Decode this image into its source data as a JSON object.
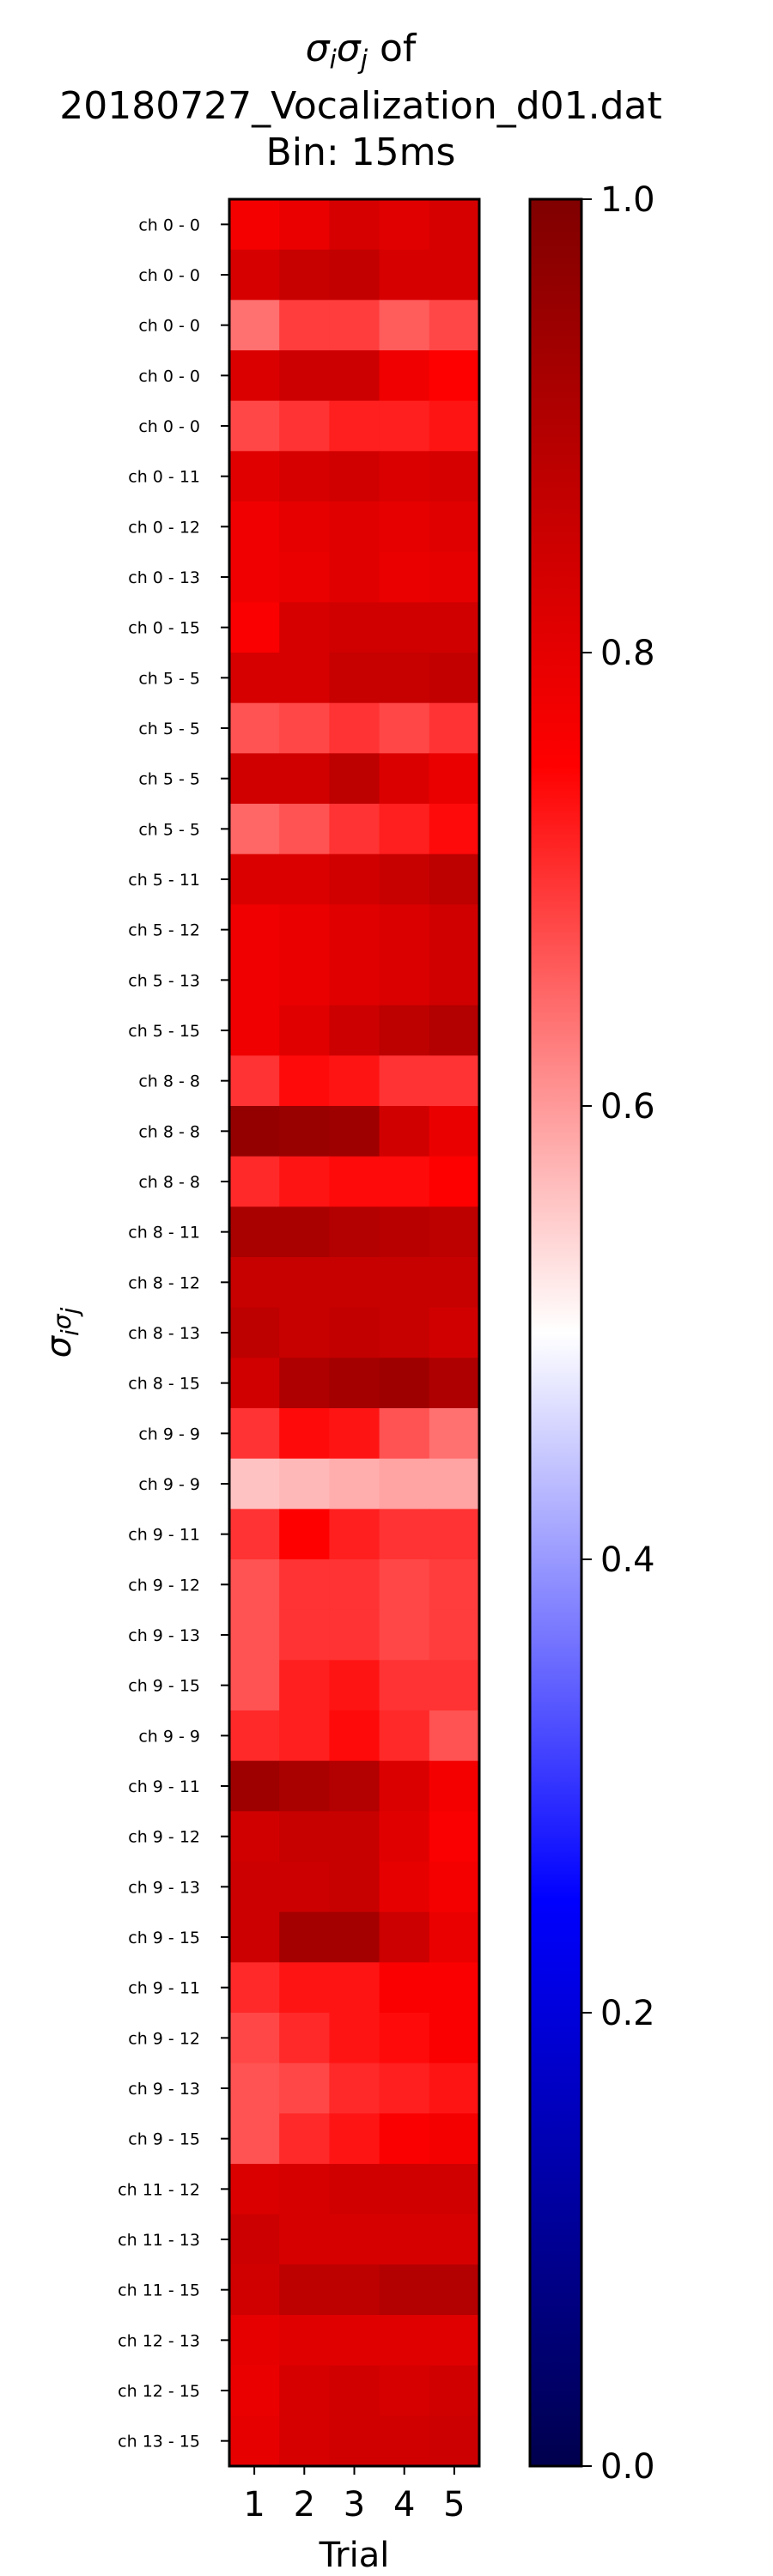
{
  "title": {
    "line1_symbol": "σ",
    "line1_sub_i": "i",
    "line1_symbol2": "σ",
    "line1_sub_j": "j",
    "line1_suffix": " of",
    "line2": "20180727_Vocalization_d01.dat",
    "line3": "Bin: 15ms"
  },
  "chart_data": {
    "type": "heatmap",
    "title": "σiσj of 20180727_Vocalization_d01.dat Bin: 15ms",
    "xlabel": "Trial",
    "ylabel": "σiσj",
    "x_ticks": [
      "1",
      "2",
      "3",
      "4",
      "5"
    ],
    "y_labels": [
      "ch  0 -  0",
      "ch  0 -  0",
      "ch  0 -  0",
      "ch  0 -  0",
      "ch  0 -  0",
      "ch  0 - 11",
      "ch  0 - 12",
      "ch  0 - 13",
      "ch  0 - 15",
      "ch  5 -  5",
      "ch  5 -  5",
      "ch  5 -  5",
      "ch  5 -  5",
      "ch  5 - 11",
      "ch  5 - 12",
      "ch  5 - 13",
      "ch  5 - 15",
      "ch  8 -  8",
      "ch  8 -  8",
      "ch  8 -  8",
      "ch  8 - 11",
      "ch  8 - 12",
      "ch  8 - 13",
      "ch  8 - 15",
      "ch  9 -  9",
      "ch  9 -  9",
      "ch  9 - 11",
      "ch  9 - 12",
      "ch  9 - 13",
      "ch  9 - 15",
      "ch  9 -  9",
      "ch  9 - 11",
      "ch  9 - 12",
      "ch  9 - 13",
      "ch  9 - 15",
      "ch  9 - 11",
      "ch  9 - 12",
      "ch  9 - 13",
      "ch  9 - 15",
      "ch 11 - 12",
      "ch 11 - 13",
      "ch 11 - 15",
      "ch 12 - 13",
      "ch 12 - 15",
      "ch 13 - 15"
    ],
    "values": [
      [
        0.77,
        0.79,
        0.83,
        0.81,
        0.83
      ],
      [
        0.83,
        0.86,
        0.87,
        0.83,
        0.83
      ],
      [
        0.64,
        0.69,
        0.69,
        0.66,
        0.68
      ],
      [
        0.82,
        0.85,
        0.85,
        0.78,
        0.75
      ],
      [
        0.68,
        0.7,
        0.72,
        0.72,
        0.73
      ],
      [
        0.81,
        0.83,
        0.84,
        0.82,
        0.83
      ],
      [
        0.78,
        0.8,
        0.81,
        0.8,
        0.81
      ],
      [
        0.78,
        0.79,
        0.81,
        0.79,
        0.8
      ],
      [
        0.76,
        0.83,
        0.84,
        0.84,
        0.84
      ],
      [
        0.83,
        0.83,
        0.86,
        0.86,
        0.87
      ],
      [
        0.67,
        0.68,
        0.7,
        0.68,
        0.7
      ],
      [
        0.84,
        0.84,
        0.88,
        0.82,
        0.79
      ],
      [
        0.65,
        0.67,
        0.7,
        0.72,
        0.74
      ],
      [
        0.82,
        0.82,
        0.84,
        0.86,
        0.88
      ],
      [
        0.78,
        0.79,
        0.81,
        0.82,
        0.84
      ],
      [
        0.78,
        0.79,
        0.81,
        0.82,
        0.84
      ],
      [
        0.78,
        0.81,
        0.85,
        0.88,
        0.9
      ],
      [
        0.7,
        0.74,
        0.73,
        0.7,
        0.7
      ],
      [
        0.96,
        0.95,
        0.94,
        0.84,
        0.79
      ],
      [
        0.71,
        0.73,
        0.74,
        0.74,
        0.75
      ],
      [
        0.92,
        0.92,
        0.9,
        0.89,
        0.88
      ],
      [
        0.86,
        0.86,
        0.86,
        0.86,
        0.86
      ],
      [
        0.88,
        0.86,
        0.87,
        0.86,
        0.84
      ],
      [
        0.84,
        0.91,
        0.93,
        0.94,
        0.91
      ],
      [
        0.7,
        0.74,
        0.73,
        0.67,
        0.64
      ],
      [
        0.56,
        0.57,
        0.58,
        0.59,
        0.59
      ],
      [
        0.7,
        0.75,
        0.72,
        0.7,
        0.7
      ],
      [
        0.67,
        0.7,
        0.7,
        0.68,
        0.69
      ],
      [
        0.67,
        0.7,
        0.7,
        0.68,
        0.69
      ],
      [
        0.67,
        0.72,
        0.73,
        0.7,
        0.7
      ],
      [
        0.71,
        0.72,
        0.74,
        0.71,
        0.67
      ],
      [
        0.94,
        0.92,
        0.9,
        0.82,
        0.77
      ],
      [
        0.84,
        0.86,
        0.86,
        0.81,
        0.76
      ],
      [
        0.85,
        0.85,
        0.86,
        0.8,
        0.77
      ],
      [
        0.85,
        0.93,
        0.93,
        0.85,
        0.79
      ],
      [
        0.71,
        0.73,
        0.73,
        0.76,
        0.76
      ],
      [
        0.68,
        0.71,
        0.73,
        0.74,
        0.76
      ],
      [
        0.67,
        0.68,
        0.71,
        0.72,
        0.73
      ],
      [
        0.67,
        0.71,
        0.73,
        0.76,
        0.77
      ],
      [
        0.82,
        0.83,
        0.84,
        0.84,
        0.84
      ],
      [
        0.85,
        0.83,
        0.83,
        0.83,
        0.83
      ],
      [
        0.84,
        0.88,
        0.88,
        0.9,
        0.9
      ],
      [
        0.8,
        0.81,
        0.81,
        0.81,
        0.81
      ],
      [
        0.79,
        0.83,
        0.84,
        0.83,
        0.84
      ],
      [
        0.8,
        0.83,
        0.84,
        0.84,
        0.85
      ]
    ],
    "colormap": "seismic",
    "colormap_stops": [
      "#00004d",
      "#0000ff",
      "#ffffff",
      "#ff0000",
      "#800000"
    ],
    "vmin": 0.0,
    "vmax": 1.0,
    "colorbar_ticks": [
      "0.0",
      "0.2",
      "0.4",
      "0.6",
      "0.8",
      "1.0"
    ],
    "grid": false,
    "legend": "colorbar-right"
  }
}
